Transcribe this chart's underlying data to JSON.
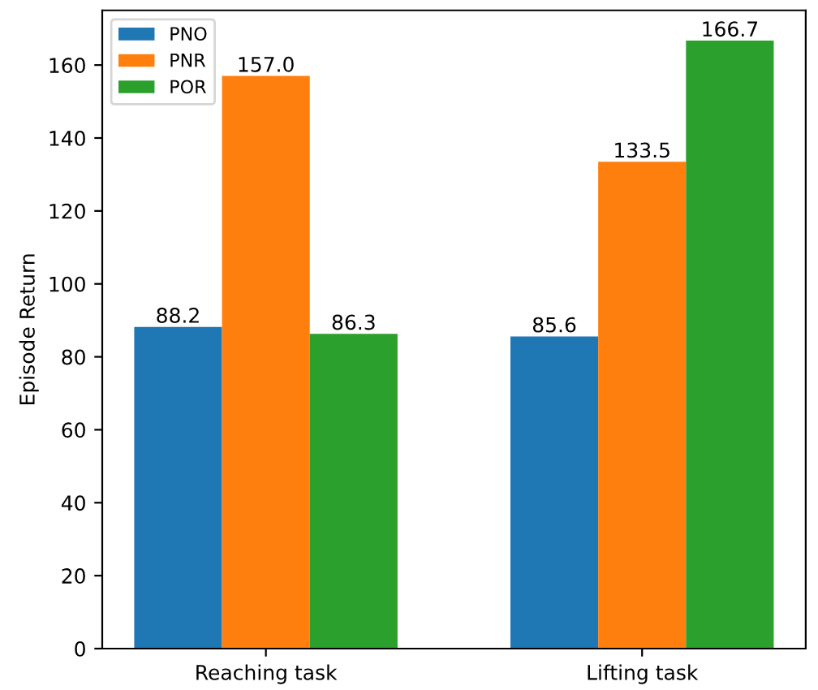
{
  "chart_data": {
    "type": "bar",
    "ylabel": "Episode Return",
    "categories": [
      "Reaching task",
      "Lifting task"
    ],
    "series": [
      {
        "name": "PNO",
        "color": "#1f77b4",
        "values": [
          88.2,
          85.6
        ],
        "value_labels": [
          "88.2",
          "85.6"
        ]
      },
      {
        "name": "PNR",
        "color": "#ff7f0e",
        "values": [
          157.0,
          133.5
        ],
        "value_labels": [
          "157.0",
          "133.5"
        ]
      },
      {
        "name": "POR",
        "color": "#2ca02c",
        "values": [
          86.3,
          166.7
        ],
        "value_labels": [
          "86.3",
          "166.7"
        ]
      }
    ],
    "ylim": [
      0,
      175
    ],
    "yticks": [
      0,
      20,
      40,
      60,
      80,
      100,
      120,
      140,
      160
    ],
    "legend": "top left",
    "grid": false
  }
}
